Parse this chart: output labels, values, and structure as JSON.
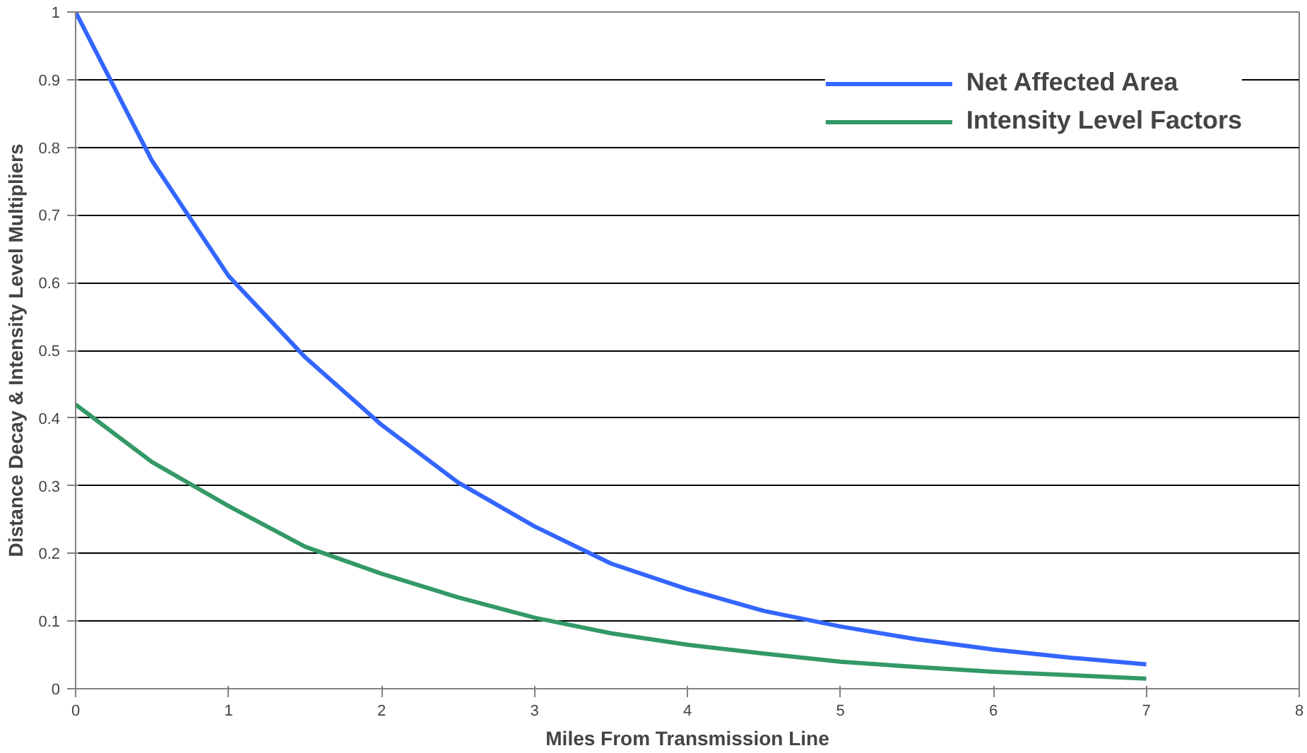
{
  "chart_data": {
    "type": "line",
    "xlabel": "Miles From Transmission Line",
    "ylabel": "Distance Decay & Intensity Level Multipliers",
    "x": [
      0,
      0.5,
      1,
      1.5,
      2,
      2.5,
      3,
      3.5,
      4,
      4.5,
      5,
      5.5,
      6,
      6.5,
      7
    ],
    "series": [
      {
        "name": "Net Affected Area",
        "color": "#3366ff",
        "values": [
          1,
          0.78,
          0.61,
          0.49,
          0.39,
          0.305,
          0.24,
          0.185,
          0.147,
          0.115,
          0.092,
          0.073,
          0.058,
          0.046,
          0.036
        ]
      },
      {
        "name": "Intensity Level Factors",
        "color": "#339966",
        "values": [
          0.42,
          0.335,
          0.27,
          0.21,
          0.17,
          0.135,
          0.105,
          0.082,
          0.065,
          0.052,
          0.04,
          0.032,
          0.025,
          0.02,
          0.015
        ]
      }
    ],
    "xlim": [
      0,
      8
    ],
    "xticks": [
      0,
      1,
      2,
      3,
      4,
      5,
      6,
      7,
      8
    ],
    "ylim": [
      0,
      1
    ],
    "yticks": [
      0,
      0.1,
      0.2,
      0.3,
      0.4,
      0.5,
      0.6,
      0.7,
      0.8,
      0.9,
      1
    ],
    "grid": "y",
    "legend": "top right",
    "marker": "none",
    "line_style": "solid"
  }
}
